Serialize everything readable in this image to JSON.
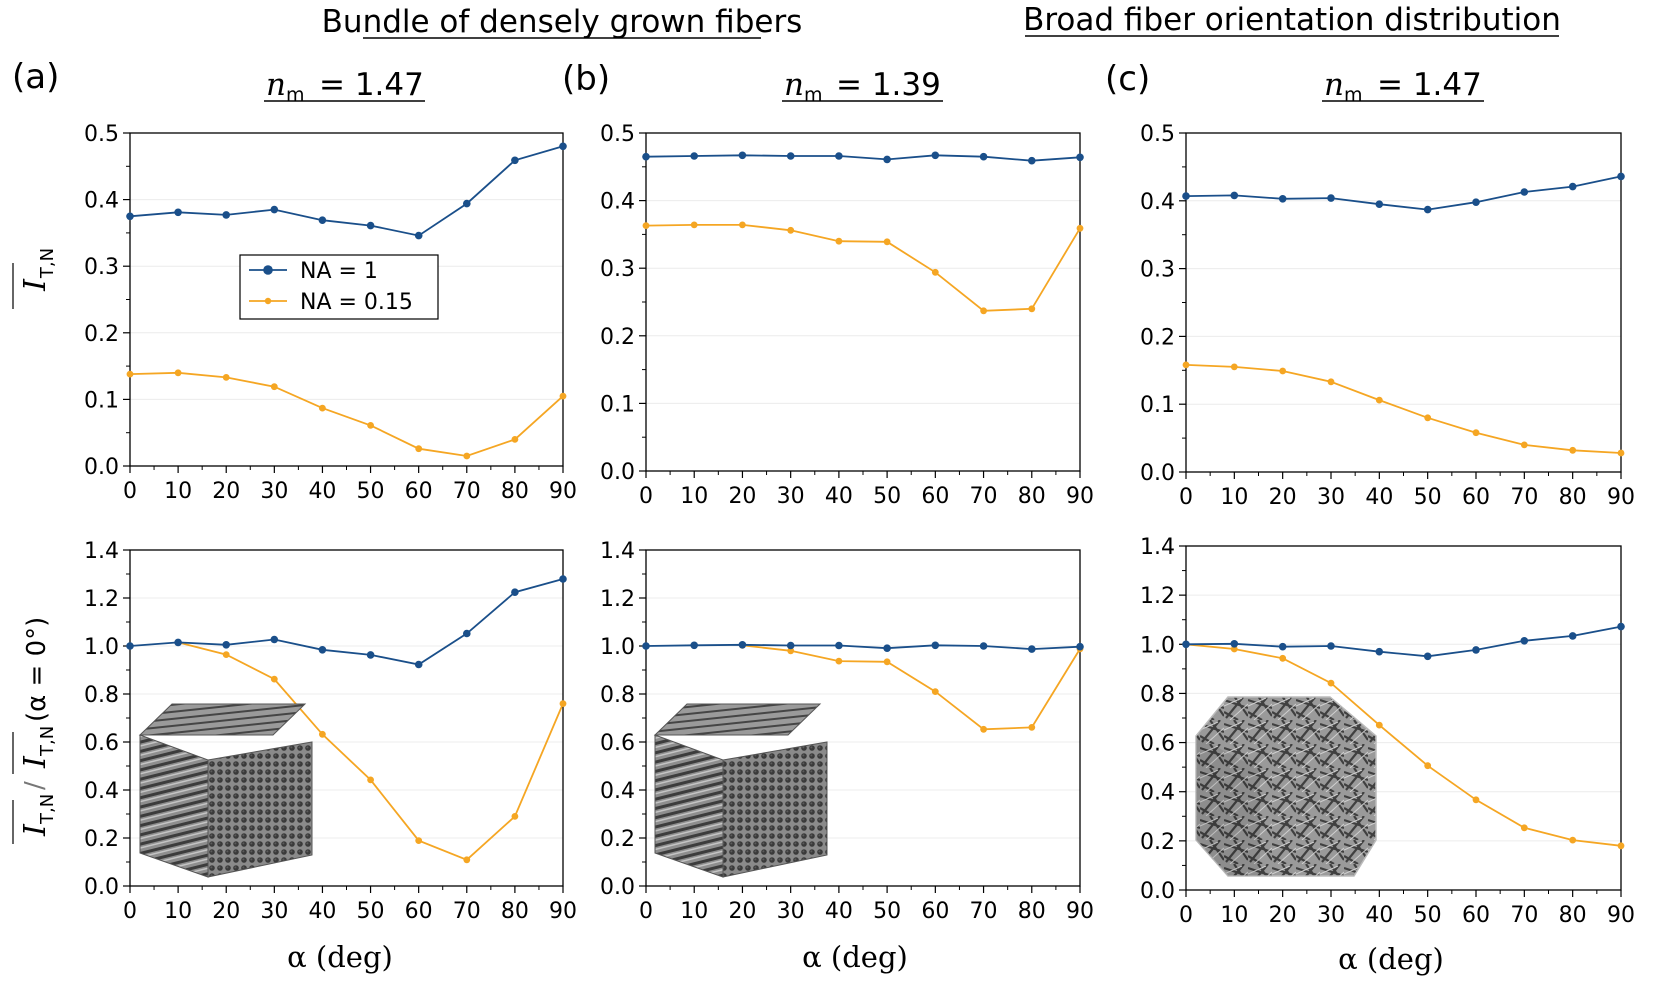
{
  "headings": {
    "left": "Bundle of densely grown fibers",
    "right": "Broad fiber orientation distribution"
  },
  "colors": {
    "NA = 1": "#1a4f8a",
    "NA = 0.15": "#f5a623"
  },
  "axis_labels": {
    "x": "α (deg)",
    "y_top": "I_T,N",
    "y_bottom": "I_T,N / I_T,N(α = 0°)"
  },
  "legend": [
    "NA = 1",
    "NA = 0.15"
  ],
  "panels": [
    {
      "label": "(a)",
      "subtitle_sym": "n",
      "subtitle_sub": "m",
      "subtitle_val": "= 1.47"
    },
    {
      "label": "(b)",
      "subtitle_sym": "n",
      "subtitle_sub": "m",
      "subtitle_val": "= 1.39"
    },
    {
      "label": "(c)",
      "subtitle_sym": "n",
      "subtitle_sub": "m",
      "subtitle_val": "= 1.47"
    }
  ],
  "chart_data": [
    {
      "id": "a-top",
      "type": "line",
      "x": [
        0,
        10,
        20,
        30,
        40,
        50,
        60,
        70,
        80,
        90
      ],
      "xlim": [
        0,
        90
      ],
      "ylim": [
        0,
        0.5
      ],
      "yticks": [
        0,
        0.1,
        0.2,
        0.3,
        0.4,
        0.5
      ],
      "xlabel": "",
      "ylabel": "I_T,N",
      "legend": "center-left",
      "series": [
        {
          "name": "NA = 1",
          "values": [
            0.375,
            0.381,
            0.377,
            0.385,
            0.369,
            0.361,
            0.346,
            0.394,
            0.459,
            0.48
          ]
        },
        {
          "name": "NA = 0.15",
          "values": [
            0.138,
            0.14,
            0.133,
            0.119,
            0.087,
            0.061,
            0.026,
            0.015,
            0.04,
            0.105
          ]
        }
      ]
    },
    {
      "id": "b-top",
      "type": "line",
      "x": [
        0,
        10,
        20,
        30,
        40,
        50,
        60,
        70,
        80,
        90
      ],
      "xlim": [
        0,
        90
      ],
      "ylim": [
        0,
        0.5
      ],
      "yticks": [
        0,
        0.1,
        0.2,
        0.3,
        0.4,
        0.5
      ],
      "series": [
        {
          "name": "NA = 1",
          "values": [
            0.465,
            0.466,
            0.467,
            0.466,
            0.466,
            0.461,
            0.467,
            0.465,
            0.459,
            0.464
          ]
        },
        {
          "name": "NA = 0.15",
          "values": [
            0.363,
            0.364,
            0.364,
            0.356,
            0.34,
            0.339,
            0.294,
            0.237,
            0.24,
            0.359
          ]
        }
      ]
    },
    {
      "id": "c-top",
      "type": "line",
      "x": [
        0,
        10,
        20,
        30,
        40,
        50,
        60,
        70,
        80,
        90
      ],
      "xlim": [
        0,
        90
      ],
      "ylim": [
        0,
        0.5
      ],
      "yticks": [
        0,
        0.1,
        0.2,
        0.3,
        0.4,
        0.5
      ],
      "series": [
        {
          "name": "NA = 1",
          "values": [
            0.407,
            0.408,
            0.403,
            0.404,
            0.395,
            0.387,
            0.398,
            0.413,
            0.421,
            0.436
          ]
        },
        {
          "name": "NA = 0.15",
          "values": [
            0.158,
            0.155,
            0.149,
            0.133,
            0.106,
            0.08,
            0.058,
            0.04,
            0.032,
            0.028
          ]
        }
      ]
    },
    {
      "id": "a-bottom",
      "type": "line",
      "x": [
        0,
        10,
        20,
        30,
        40,
        50,
        60,
        70,
        80,
        90
      ],
      "xlim": [
        0,
        90
      ],
      "ylim": [
        0,
        1.4
      ],
      "yticks": [
        0,
        0.2,
        0.4,
        0.6,
        0.8,
        1.0,
        1.2,
        1.4
      ],
      "xlabel": "α (deg)",
      "ylabel": "I_T,N / I_T,N(α = 0°)",
      "series": [
        {
          "name": "NA = 1",
          "values": [
            1.0,
            1.015,
            1.005,
            1.027,
            0.984,
            0.963,
            0.923,
            1.052,
            1.224,
            1.279
          ]
        },
        {
          "name": "NA = 0.15",
          "values": [
            null,
            1.015,
            0.964,
            0.862,
            0.632,
            0.442,
            0.189,
            0.109,
            0.29,
            0.76
          ]
        }
      ]
    },
    {
      "id": "b-bottom",
      "type": "line",
      "x": [
        0,
        10,
        20,
        30,
        40,
        50,
        60,
        70,
        80,
        90
      ],
      "xlim": [
        0,
        90
      ],
      "ylim": [
        0,
        1.4
      ],
      "yticks": [
        0,
        0.2,
        0.4,
        0.6,
        0.8,
        1.0,
        1.2,
        1.4
      ],
      "xlabel": "α (deg)",
      "series": [
        {
          "name": "NA = 1",
          "values": [
            1.0,
            1.003,
            1.005,
            1.002,
            1.002,
            0.991,
            1.003,
            1.0,
            0.987,
            0.997
          ]
        },
        {
          "name": "NA = 0.15",
          "values": [
            null,
            null,
            1.003,
            0.98,
            0.937,
            0.934,
            0.81,
            0.653,
            0.661,
            0.988
          ]
        }
      ]
    },
    {
      "id": "c-bottom",
      "type": "line",
      "x": [
        0,
        10,
        20,
        30,
        40,
        50,
        60,
        70,
        80,
        90
      ],
      "xlim": [
        0,
        90
      ],
      "ylim": [
        0,
        1.4
      ],
      "yticks": [
        0,
        0.2,
        0.4,
        0.6,
        0.8,
        1.0,
        1.2,
        1.4
      ],
      "xlabel": "α (deg)",
      "series": [
        {
          "name": "NA = 1",
          "values": [
            1.0,
            1.002,
            0.99,
            0.993,
            0.97,
            0.951,
            0.977,
            1.014,
            1.034,
            1.072
          ]
        },
        {
          "name": "NA = 0.15",
          "values": [
            1.0,
            0.981,
            0.943,
            0.842,
            0.671,
            0.506,
            0.367,
            0.253,
            0.203,
            0.18
          ]
        }
      ]
    }
  ]
}
